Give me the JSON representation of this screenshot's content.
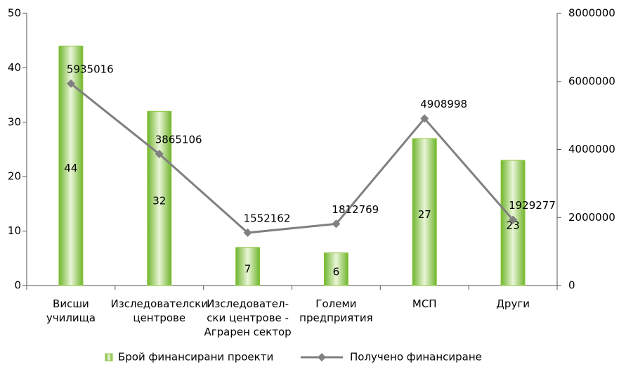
{
  "chart_data": {
    "type": "bar-line",
    "categories": [
      [
        "Висши",
        "училища"
      ],
      [
        "Изследователски",
        "центрове"
      ],
      [
        "Изследовател-",
        "ски центрове -",
        "Аграрен сектор"
      ],
      [
        "Големи",
        "предприятия"
      ],
      [
        "МСП"
      ],
      [
        "Други"
      ]
    ],
    "series": [
      {
        "name": "Брой финансирани проекти",
        "color": "#8dc63f",
        "values": [
          44,
          32,
          7,
          6,
          27,
          23
        ]
      },
      {
        "name": "Получено финансиране",
        "color": "#808080",
        "axis": "y2",
        "values": [
          5935016,
          3865106,
          1552162,
          1812769,
          4908998,
          1929277
        ]
      }
    ],
    "ylim": [
      0,
      50
    ],
    "yticks": [
      0,
      10,
      20,
      30,
      40,
      50
    ],
    "y2lim": [
      0,
      8000000
    ],
    "y2ticks": [
      0,
      2000000,
      4000000,
      6000000,
      8000000
    ]
  }
}
